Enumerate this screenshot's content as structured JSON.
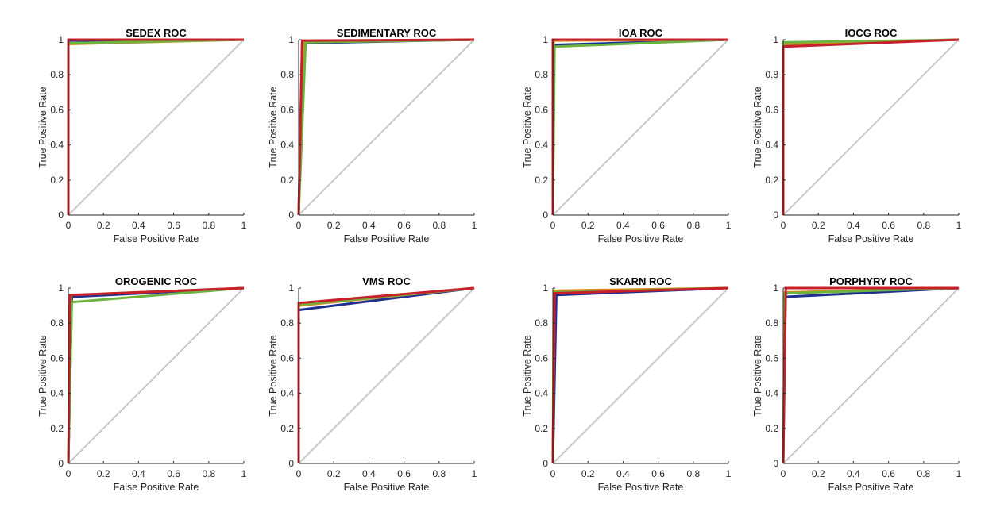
{
  "colors": {
    "blue": "#1f2f8f",
    "orange": "#d98a1a",
    "green": "#6db33f",
    "red": "#c8202a",
    "diagonal": "#c8c8c8",
    "axis": "#262626"
  },
  "chart_data": [
    {
      "type": "line",
      "title": "SEDEX ROC",
      "xlabel": "False Positive Rate",
      "ylabel": "True Positive Rate",
      "xlim": [
        0,
        1
      ],
      "ylim": [
        0,
        1
      ],
      "xticks": [
        "0",
        "0.2",
        "0.4",
        "0.6",
        "0.8",
        "1"
      ],
      "yticks": [
        "0",
        "0.2",
        "0.4",
        "0.6",
        "0.8",
        "1"
      ],
      "grid": false,
      "diagonal": true,
      "series": [
        {
          "color": "blue",
          "points": [
            [
              0,
              0
            ],
            [
              0,
              0.995
            ],
            [
              1,
              1
            ]
          ]
        },
        {
          "color": "orange",
          "points": [
            [
              0,
              0
            ],
            [
              0,
              0.975
            ],
            [
              1,
              1
            ]
          ]
        },
        {
          "color": "green",
          "points": [
            [
              0,
              0
            ],
            [
              0,
              0.98
            ],
            [
              1,
              1
            ]
          ]
        },
        {
          "color": "red",
          "points": [
            [
              0,
              0
            ],
            [
              0,
              1
            ],
            [
              1,
              1
            ]
          ]
        }
      ]
    },
    {
      "type": "line",
      "title": "SEDIMENTARY ROC",
      "xlabel": "False Positive Rate",
      "ylabel": "True Positive Rate",
      "xlim": [
        0,
        1
      ],
      "ylim": [
        0,
        1
      ],
      "xticks": [
        "0",
        "0.2",
        "0.4",
        "0.6",
        "0.8",
        "1"
      ],
      "yticks": [
        "0",
        "0.2",
        "0.4",
        "0.6",
        "0.8",
        "1"
      ],
      "grid": false,
      "diagonal": true,
      "series": [
        {
          "color": "blue",
          "points": [
            [
              0,
              0
            ],
            [
              0.02,
              0.98
            ],
            [
              1,
              1
            ]
          ]
        },
        {
          "color": "orange",
          "points": [
            [
              0,
              0
            ],
            [
              0.03,
              0.985
            ],
            [
              1,
              1
            ]
          ]
        },
        {
          "color": "green",
          "points": [
            [
              0,
              0
            ],
            [
              0.04,
              0.985
            ],
            [
              1,
              1
            ]
          ]
        },
        {
          "color": "red",
          "points": [
            [
              0,
              0
            ],
            [
              0.02,
              0.995
            ],
            [
              1,
              1
            ]
          ]
        }
      ]
    },
    {
      "type": "line",
      "title": "IOA ROC",
      "xlabel": "False Positive Rate",
      "ylabel": "True Positive Rate",
      "xlim": [
        0,
        1
      ],
      "ylim": [
        0,
        1
      ],
      "xticks": [
        "0",
        "0.2",
        "0.4",
        "0.6",
        "0.8",
        "1"
      ],
      "yticks": [
        "0",
        "0.2",
        "0.4",
        "0.6",
        "0.8",
        "1"
      ],
      "grid": false,
      "diagonal": true,
      "series": [
        {
          "color": "blue",
          "points": [
            [
              0,
              0
            ],
            [
              0.005,
              0.97
            ],
            [
              1,
              1
            ]
          ]
        },
        {
          "color": "orange",
          "points": [
            [
              0,
              0
            ],
            [
              0.005,
              0.995
            ],
            [
              1,
              1
            ]
          ]
        },
        {
          "color": "green",
          "points": [
            [
              0,
              0
            ],
            [
              0.01,
              0.96
            ],
            [
              1,
              1
            ]
          ]
        },
        {
          "color": "red",
          "points": [
            [
              0,
              0
            ],
            [
              0,
              1
            ],
            [
              1,
              1
            ]
          ]
        }
      ]
    },
    {
      "type": "line",
      "title": "IOCG ROC",
      "xlabel": "False Positive Rate",
      "ylabel": "True Positive Rate",
      "xlim": [
        0,
        1
      ],
      "ylim": [
        0,
        1
      ],
      "xticks": [
        "0",
        "0.2",
        "0.4",
        "0.6",
        "0.8",
        "1"
      ],
      "yticks": [
        "0",
        "0.2",
        "0.4",
        "0.6",
        "0.8",
        "1"
      ],
      "grid": false,
      "diagonal": true,
      "series": [
        {
          "color": "blue",
          "points": [
            [
              0,
              0
            ],
            [
              0,
              0.97
            ],
            [
              1,
              1
            ]
          ]
        },
        {
          "color": "orange",
          "points": [
            [
              0,
              0
            ],
            [
              0,
              0.975
            ],
            [
              1,
              1
            ]
          ]
        },
        {
          "color": "green",
          "points": [
            [
              0,
              0
            ],
            [
              0,
              0.985
            ],
            [
              1,
              1
            ]
          ]
        },
        {
          "color": "red",
          "points": [
            [
              0,
              0
            ],
            [
              0,
              0.96
            ],
            [
              1,
              1
            ]
          ]
        }
      ]
    },
    {
      "type": "line",
      "title": "OROGENIC ROC",
      "xlabel": "False Positive Rate",
      "ylabel": "True Positive Rate",
      "xlim": [
        0,
        1
      ],
      "ylim": [
        0,
        1
      ],
      "xticks": [
        "0",
        "0.2",
        "0.4",
        "0.6",
        "0.8",
        "1"
      ],
      "yticks": [
        "0",
        "0.2",
        "0.4",
        "0.6",
        "0.8",
        "1"
      ],
      "grid": false,
      "diagonal": true,
      "series": [
        {
          "color": "blue",
          "points": [
            [
              0,
              0
            ],
            [
              0.02,
              0.95
            ],
            [
              1,
              1
            ]
          ]
        },
        {
          "color": "orange",
          "points": [
            [
              0,
              0
            ],
            [
              0.015,
              0.96
            ],
            [
              1,
              1
            ]
          ]
        },
        {
          "color": "green",
          "points": [
            [
              0,
              0
            ],
            [
              0.02,
              0.92
            ],
            [
              1,
              1
            ]
          ]
        },
        {
          "color": "red",
          "points": [
            [
              0,
              0
            ],
            [
              0.01,
              0.96
            ],
            [
              1,
              1
            ]
          ]
        }
      ]
    },
    {
      "type": "line",
      "title": "VMS ROC",
      "xlabel": "False Positive Rate",
      "ylabel": "True Positive Rate",
      "xlim": [
        0,
        1
      ],
      "ylim": [
        0,
        1
      ],
      "xticks": [
        "0",
        "0.2",
        "0.4",
        "0.6",
        "0.8",
        "1"
      ],
      "yticks": [
        "0",
        "0.2",
        "0.4",
        "0.6",
        "0.8",
        "1"
      ],
      "grid": false,
      "diagonal": true,
      "series": [
        {
          "color": "blue",
          "points": [
            [
              0,
              0
            ],
            [
              0,
              0.875
            ],
            [
              1,
              1
            ]
          ]
        },
        {
          "color": "orange",
          "points": [
            [
              0,
              0
            ],
            [
              0,
              0.9
            ],
            [
              1,
              1
            ]
          ]
        },
        {
          "color": "green",
          "points": [
            [
              0,
              0
            ],
            [
              0,
              0.905
            ],
            [
              1,
              1
            ]
          ]
        },
        {
          "color": "red",
          "points": [
            [
              0,
              0
            ],
            [
              0,
              0.915
            ],
            [
              1,
              1
            ]
          ]
        }
      ]
    },
    {
      "type": "line",
      "title": "SKARN ROC",
      "xlabel": "False Positive Rate",
      "ylabel": "True Positive Rate",
      "xlim": [
        0,
        1
      ],
      "ylim": [
        0,
        1
      ],
      "xticks": [
        "0",
        "0.2",
        "0.4",
        "0.6",
        "0.8",
        "1"
      ],
      "yticks": [
        "0",
        "0.2",
        "0.4",
        "0.6",
        "0.8",
        "1"
      ],
      "grid": false,
      "diagonal": true,
      "series": [
        {
          "color": "blue",
          "points": [
            [
              0,
              0
            ],
            [
              0.02,
              0.96
            ],
            [
              1,
              1
            ]
          ]
        },
        {
          "color": "orange",
          "points": [
            [
              0,
              0
            ],
            [
              0.005,
              0.985
            ],
            [
              1,
              1
            ]
          ]
        },
        {
          "color": "green",
          "points": [
            [
              0,
              0
            ],
            [
              0.01,
              0.975
            ],
            [
              1,
              1
            ]
          ]
        },
        {
          "color": "red",
          "points": [
            [
              0,
              0
            ],
            [
              0.01,
              0.97
            ],
            [
              1,
              1
            ]
          ]
        }
      ]
    },
    {
      "type": "line",
      "title": "PORPHYRY ROC",
      "xlabel": "False Positive Rate",
      "ylabel": "True Positive Rate",
      "xlim": [
        0,
        1
      ],
      "ylim": [
        0,
        1
      ],
      "xticks": [
        "0",
        "0.2",
        "0.4",
        "0.6",
        "0.8",
        "1"
      ],
      "yticks": [
        "0",
        "0.2",
        "0.4",
        "0.6",
        "0.8",
        "1"
      ],
      "grid": false,
      "diagonal": true,
      "series": [
        {
          "color": "blue",
          "points": [
            [
              0,
              0
            ],
            [
              0.01,
              0.95
            ],
            [
              1,
              1
            ]
          ]
        },
        {
          "color": "orange",
          "points": [
            [
              0,
              0
            ],
            [
              0.01,
              0.975
            ],
            [
              1,
              1
            ]
          ]
        },
        {
          "color": "green",
          "points": [
            [
              0,
              0
            ],
            [
              0.01,
              0.97
            ],
            [
              1,
              1
            ]
          ]
        },
        {
          "color": "red",
          "points": [
            [
              0,
              0
            ],
            [
              0.015,
              1
            ],
            [
              1,
              1
            ]
          ]
        }
      ]
    }
  ]
}
